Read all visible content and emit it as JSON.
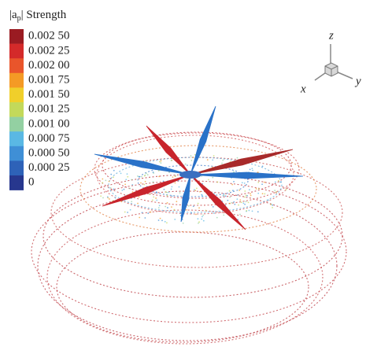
{
  "legend": {
    "title": {
      "left": "|a",
      "subscript": "p",
      "right": "| Strength"
    },
    "labels": [
      "0.002 50",
      "0.002 25",
      "0.002 00",
      "0.001 75",
      "0.001 50",
      "0.001 25",
      "0.001 00",
      "0.000 75",
      "0.000 50",
      "0.000 25",
      "0"
    ],
    "colors": [
      "#9a1b22",
      "#d42a2a",
      "#e9552b",
      "#f49a25",
      "#f0cf2a",
      "#c3d95a",
      "#93d0a2",
      "#5ab8e4",
      "#3f8fd6",
      "#2e62b8",
      "#27378e"
    ]
  },
  "axes": {
    "z": "z",
    "x": "x",
    "y": "y"
  }
}
